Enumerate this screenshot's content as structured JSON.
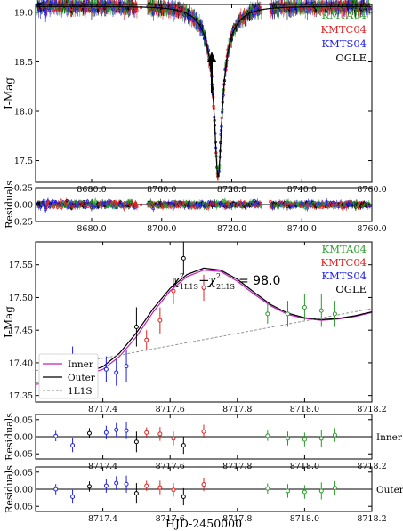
{
  "chart_data": [
    {
      "type": "scatter",
      "ylabel": "I-Mag",
      "xlim": [
        8664,
        8760
      ],
      "ylim": [
        19.08,
        17.28
      ],
      "xticks": [
        "8680.0",
        "8700.0",
        "8720.0",
        "8740.0",
        "8760.0"
      ],
      "yticks": [
        "17.5",
        "18.0",
        "18.5",
        "19.0"
      ],
      "legend": [
        "KMTA04",
        "KMTC04",
        "KMTS04",
        "OGLE"
      ],
      "legend_colors": [
        "#2a9d2a",
        "#e02020",
        "#1f1fe6",
        "#000000"
      ],
      "legend_position": "top-right",
      "arrow_x": 8717,
      "model": {
        "t0": 8716.1,
        "peak_mag": 17.33,
        "base_mag": 19.06,
        "u0": 0.12,
        "tE": 8.5
      }
    },
    {
      "type": "scatter",
      "ylabel": "Residuals",
      "xlim": [
        8664,
        8760
      ],
      "ylim": [
        -0.25,
        0.25
      ],
      "xticks": [
        "8680.0",
        "8700.0",
        "8720.0",
        "8740.0",
        "8760.0"
      ],
      "yticks": [
        "-0.25",
        "0.00",
        "0.25"
      ],
      "zero_line": true
    },
    {
      "type": "line",
      "ylabel": "I-Mag",
      "xlim": [
        8717.2,
        8718.2
      ],
      "ylim": [
        17.585,
        17.34
      ],
      "xticks": [
        "8717.4",
        "8717.6",
        "8717.8",
        "8718.0",
        "8718.2"
      ],
      "yticks": [
        "17.35",
        "17.40",
        "17.45",
        "17.50",
        "17.55"
      ],
      "legend": [
        "KMTA04",
        "KMTC04",
        "KMTS04",
        "OGLE"
      ],
      "legend_colors": [
        "#2a9d2a",
        "#e02020",
        "#1f1fe6",
        "#000000"
      ],
      "legend_position": "top-right",
      "annotation_main": "χ",
      "annotation_sub1": "1L1S",
      "annotation_sub2": "2L1S",
      "annotation_sup": "2",
      "annotation_value": "= 98.0",
      "model_legend": [
        "Inner",
        "Outer",
        "1L1S"
      ],
      "model_legend_position": "lower-left",
      "series": [
        {
          "name": "Inner",
          "color": "#c41ec4",
          "style": "solid",
          "x": [
            8717.2,
            8717.3,
            8717.4,
            8717.45,
            8717.5,
            8717.55,
            8717.6,
            8717.65,
            8717.7,
            8717.75,
            8717.8,
            8717.85,
            8717.9,
            8717.95,
            8718.0,
            8718.05,
            8718.1,
            8718.15,
            8718.2
          ],
          "y": [
            17.367,
            17.374,
            17.39,
            17.41,
            17.44,
            17.478,
            17.51,
            17.532,
            17.542,
            17.54,
            17.525,
            17.505,
            17.487,
            17.474,
            17.468,
            17.465,
            17.467,
            17.471,
            17.477
          ]
        },
        {
          "name": "Outer",
          "color": "#000000",
          "style": "solid",
          "x": [
            8717.2,
            8717.3,
            8717.4,
            8717.45,
            8717.5,
            8717.55,
            8717.6,
            8717.65,
            8717.7,
            8717.75,
            8717.8,
            8717.85,
            8717.9,
            8717.95,
            8718.0,
            8718.05,
            8718.1,
            8718.15,
            8718.2
          ],
          "y": [
            17.37,
            17.377,
            17.394,
            17.415,
            17.446,
            17.483,
            17.514,
            17.535,
            17.545,
            17.542,
            17.528,
            17.508,
            17.489,
            17.476,
            17.469,
            17.466,
            17.468,
            17.472,
            17.478
          ]
        },
        {
          "name": "1L1S",
          "color": "#888888",
          "style": "dashed",
          "x": [
            8717.2,
            8718.2
          ],
          "y": [
            17.388,
            17.483
          ]
        }
      ],
      "points": [
        {
          "x": 8717.26,
          "y": 17.365,
          "e": 0.015,
          "c": "#1f1fe6"
        },
        {
          "x": 8717.31,
          "y": 17.405,
          "e": 0.02,
          "c": "#1f1fe6"
        },
        {
          "x": 8717.36,
          "y": 17.385,
          "e": 0.015,
          "c": "#000000"
        },
        {
          "x": 8717.41,
          "y": 17.39,
          "e": 0.02,
          "c": "#1f1fe6"
        },
        {
          "x": 8717.44,
          "y": 17.385,
          "e": 0.02,
          "c": "#1f1fe6"
        },
        {
          "x": 8717.47,
          "y": 17.395,
          "e": 0.025,
          "c": "#1f1fe6"
        },
        {
          "x": 8717.5,
          "y": 17.455,
          "e": 0.03,
          "c": "#000000"
        },
        {
          "x": 8717.53,
          "y": 17.435,
          "e": 0.015,
          "c": "#e02020"
        },
        {
          "x": 8717.57,
          "y": 17.465,
          "e": 0.02,
          "c": "#e02020"
        },
        {
          "x": 8717.61,
          "y": 17.51,
          "e": 0.02,
          "c": "#e02020"
        },
        {
          "x": 8717.64,
          "y": 17.56,
          "e": 0.025,
          "c": "#000000"
        },
        {
          "x": 8717.7,
          "y": 17.515,
          "e": 0.02,
          "c": "#e02020"
        },
        {
          "x": 8717.89,
          "y": 17.475,
          "e": 0.015,
          "c": "#2a9d2a"
        },
        {
          "x": 8717.95,
          "y": 17.475,
          "e": 0.02,
          "c": "#2a9d2a"
        },
        {
          "x": 8718.0,
          "y": 17.485,
          "e": 0.02,
          "c": "#2a9d2a"
        },
        {
          "x": 8718.05,
          "y": 17.48,
          "e": 0.025,
          "c": "#2a9d2a"
        },
        {
          "x": 8718.09,
          "y": 17.475,
          "e": 0.02,
          "c": "#2a9d2a"
        }
      ]
    },
    {
      "type": "scatter",
      "ylabel": "Residuals",
      "panel_label": "Inner",
      "xlim": [
        8717.2,
        8718.2
      ],
      "ylim": [
        -0.065,
        0.065
      ],
      "xticks": [
        "8717.4",
        "8717.6",
        "8717.8",
        "8718.0",
        "8718.2"
      ],
      "yticks": [
        "-0.05",
        "0.00",
        "0.05"
      ],
      "points": [
        {
          "x": 8717.26,
          "y": 0.002,
          "e": 0.015,
          "c": "#1f1fe6"
        },
        {
          "x": 8717.31,
          "y": -0.025,
          "e": 0.02,
          "c": "#1f1fe6"
        },
        {
          "x": 8717.36,
          "y": 0.01,
          "e": 0.015,
          "c": "#000000"
        },
        {
          "x": 8717.41,
          "y": 0.012,
          "e": 0.02,
          "c": "#1f1fe6"
        },
        {
          "x": 8717.44,
          "y": 0.02,
          "e": 0.02,
          "c": "#1f1fe6"
        },
        {
          "x": 8717.47,
          "y": 0.018,
          "e": 0.025,
          "c": "#1f1fe6"
        },
        {
          "x": 8717.5,
          "y": -0.015,
          "e": 0.03,
          "c": "#000000"
        },
        {
          "x": 8717.53,
          "y": 0.012,
          "e": 0.015,
          "c": "#e02020"
        },
        {
          "x": 8717.57,
          "y": 0.008,
          "e": 0.02,
          "c": "#e02020"
        },
        {
          "x": 8717.61,
          "y": -0.005,
          "e": 0.02,
          "c": "#e02020"
        },
        {
          "x": 8717.64,
          "y": -0.025,
          "e": 0.025,
          "c": "#000000"
        },
        {
          "x": 8717.7,
          "y": 0.015,
          "e": 0.02,
          "c": "#e02020"
        },
        {
          "x": 8717.89,
          "y": 0.003,
          "e": 0.015,
          "c": "#2a9d2a"
        },
        {
          "x": 8717.95,
          "y": -0.005,
          "e": 0.02,
          "c": "#2a9d2a"
        },
        {
          "x": 8718.0,
          "y": -0.008,
          "e": 0.02,
          "c": "#2a9d2a"
        },
        {
          "x": 8718.05,
          "y": -0.005,
          "e": 0.025,
          "c": "#2a9d2a"
        },
        {
          "x": 8718.09,
          "y": 0.005,
          "e": 0.02,
          "c": "#2a9d2a"
        }
      ]
    },
    {
      "type": "scatter",
      "ylabel": "Residuals",
      "panel_label": "Outer",
      "xlim": [
        8717.2,
        8718.2
      ],
      "ylim": [
        -0.065,
        0.065
      ],
      "xticks": [
        "8717.4",
        "8717.6",
        "8717.8",
        "8718.0",
        "8718.2"
      ],
      "yticks": [
        "-0.05",
        "0.00",
        "0.05"
      ],
      "xlabel": "HJD-2450000",
      "points": [
        {
          "x": 8717.26,
          "y": 0.0,
          "e": 0.015,
          "c": "#1f1fe6"
        },
        {
          "x": 8717.31,
          "y": -0.022,
          "e": 0.02,
          "c": "#1f1fe6"
        },
        {
          "x": 8717.36,
          "y": 0.008,
          "e": 0.015,
          "c": "#000000"
        },
        {
          "x": 8717.41,
          "y": 0.01,
          "e": 0.02,
          "c": "#1f1fe6"
        },
        {
          "x": 8717.44,
          "y": 0.018,
          "e": 0.02,
          "c": "#1f1fe6"
        },
        {
          "x": 8717.47,
          "y": 0.015,
          "e": 0.025,
          "c": "#1f1fe6"
        },
        {
          "x": 8717.5,
          "y": -0.012,
          "e": 0.03,
          "c": "#000000"
        },
        {
          "x": 8717.53,
          "y": 0.01,
          "e": 0.015,
          "c": "#e02020"
        },
        {
          "x": 8717.57,
          "y": 0.005,
          "e": 0.02,
          "c": "#e02020"
        },
        {
          "x": 8717.61,
          "y": -0.002,
          "e": 0.02,
          "c": "#e02020"
        },
        {
          "x": 8717.64,
          "y": -0.022,
          "e": 0.025,
          "c": "#000000"
        },
        {
          "x": 8717.7,
          "y": 0.014,
          "e": 0.02,
          "c": "#e02020"
        },
        {
          "x": 8717.89,
          "y": 0.002,
          "e": 0.015,
          "c": "#2a9d2a"
        },
        {
          "x": 8717.95,
          "y": -0.005,
          "e": 0.02,
          "c": "#2a9d2a"
        },
        {
          "x": 8718.0,
          "y": -0.008,
          "e": 0.02,
          "c": "#2a9d2a"
        },
        {
          "x": 8718.05,
          "y": -0.005,
          "e": 0.025,
          "c": "#2a9d2a"
        },
        {
          "x": 8718.09,
          "y": 0.004,
          "e": 0.02,
          "c": "#2a9d2a"
        }
      ]
    }
  ]
}
